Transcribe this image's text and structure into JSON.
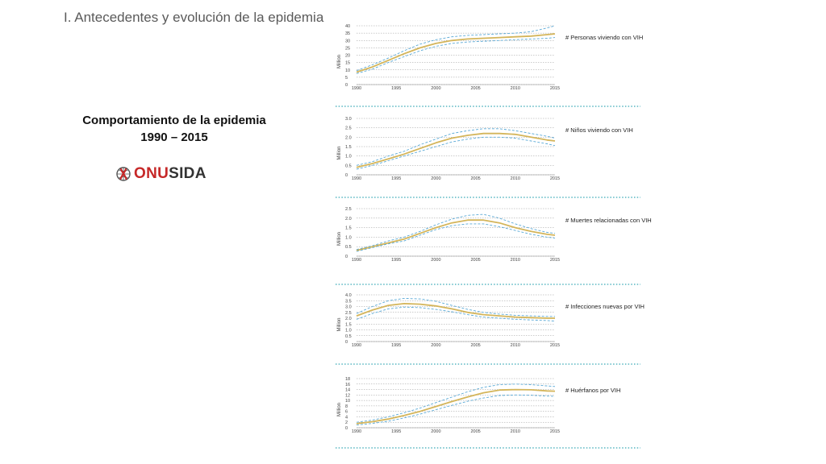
{
  "slide": {
    "title": "I. Antecedentes y evolución de la epidemia",
    "heading_line1": "Comportamiento de la epidemia",
    "heading_line2": "1990 – 2015",
    "logo_text_prefix": "ONU",
    "logo_text_suffix": "SIDA"
  },
  "colors": {
    "estimate": "#d4b55a",
    "bounds": "#5aa9d6",
    "grid": "#999999",
    "divider": "#34a7b5",
    "logo_red": "#c62828"
  },
  "chart_data": [
    {
      "type": "line",
      "label": "# Personas viviendo con VIH",
      "ylabel": "Million",
      "ylim": [
        0,
        40
      ],
      "yticks": [
        "0",
        "5",
        "10",
        "15",
        "20",
        "25",
        "30",
        "35",
        "40"
      ],
      "xticks": [
        "1990",
        "1995",
        "2000",
        "2005",
        "2010",
        "2015"
      ],
      "x": [
        1990,
        1992,
        1994,
        1996,
        1998,
        2000,
        2002,
        2004,
        2006,
        2008,
        2010,
        2012,
        2014,
        2015
      ],
      "series": [
        {
          "role": "estimate",
          "values": [
            8.5,
            12,
            16.5,
            21,
            25,
            28,
            30,
            31,
            31.5,
            32,
            32.5,
            33,
            34,
            34.5
          ]
        },
        {
          "role": "upper",
          "values": [
            9.5,
            13.5,
            18,
            23,
            27.5,
            30.5,
            32.5,
            33.5,
            34,
            34.5,
            35,
            36,
            38.5,
            40
          ]
        },
        {
          "role": "lower",
          "values": [
            7.5,
            10.5,
            15,
            19,
            23,
            26,
            28,
            29,
            29.5,
            30,
            30.5,
            31,
            31.5,
            32
          ]
        }
      ]
    },
    {
      "type": "line",
      "label": "# Niños viviendo con VIH",
      "ylabel": "Million",
      "ylim": [
        0,
        3.0
      ],
      "yticks": [
        "0",
        "0.5",
        "1.0",
        "1.5",
        "2.0",
        "2.5",
        "3.0"
      ],
      "xticks": [
        "1990",
        "1995",
        "2000",
        "2005",
        "2010",
        "2015"
      ],
      "x": [
        1990,
        1992,
        1994,
        1996,
        1998,
        2000,
        2002,
        2004,
        2006,
        2008,
        2010,
        2012,
        2014,
        2015
      ],
      "series": [
        {
          "role": "estimate",
          "values": [
            0.4,
            0.6,
            0.85,
            1.1,
            1.4,
            1.7,
            1.95,
            2.1,
            2.2,
            2.2,
            2.15,
            2.0,
            1.85,
            1.8
          ]
        },
        {
          "role": "upper",
          "values": [
            0.5,
            0.7,
            1.0,
            1.25,
            1.6,
            1.9,
            2.2,
            2.35,
            2.45,
            2.45,
            2.35,
            2.2,
            2.05,
            1.95
          ]
        },
        {
          "role": "lower",
          "values": [
            0.3,
            0.5,
            0.75,
            1.0,
            1.25,
            1.5,
            1.75,
            1.9,
            2.0,
            2.0,
            1.95,
            1.8,
            1.65,
            1.55
          ]
        }
      ]
    },
    {
      "type": "line",
      "label": "# Muertes relacionadas con VIH",
      "ylabel": "Million",
      "ylim": [
        0,
        2.5
      ],
      "yticks": [
        "0",
        "0.5",
        "1.0",
        "1.5",
        "2.0",
        "2.5"
      ],
      "xticks": [
        "1990",
        "1995",
        "2000",
        "2005",
        "2010",
        "2015"
      ],
      "x": [
        1990,
        1992,
        1994,
        1996,
        1998,
        2000,
        2002,
        2004,
        2006,
        2008,
        2010,
        2012,
        2014,
        2015
      ],
      "series": [
        {
          "role": "estimate",
          "values": [
            0.3,
            0.5,
            0.7,
            0.9,
            1.2,
            1.5,
            1.75,
            1.9,
            1.9,
            1.75,
            1.5,
            1.3,
            1.15,
            1.1
          ]
        },
        {
          "role": "upper",
          "values": [
            0.35,
            0.55,
            0.8,
            1.0,
            1.3,
            1.65,
            1.95,
            2.15,
            2.2,
            2.0,
            1.7,
            1.45,
            1.25,
            1.2
          ]
        },
        {
          "role": "lower",
          "values": [
            0.25,
            0.45,
            0.65,
            0.8,
            1.1,
            1.4,
            1.6,
            1.7,
            1.7,
            1.55,
            1.35,
            1.15,
            1.0,
            0.95
          ]
        }
      ]
    },
    {
      "type": "line",
      "label": "# Infecciones nuevas por VIH",
      "ylabel": "Million",
      "ylim": [
        0,
        4.0
      ],
      "yticks": [
        "0",
        "0.5",
        "1.0",
        "1.5",
        "2.0",
        "2.5",
        "3.0",
        "3.5",
        "4.0"
      ],
      "xticks": [
        "1990",
        "1995",
        "2000",
        "2005",
        "2010",
        "2015"
      ],
      "x": [
        1990,
        1992,
        1994,
        1996,
        1998,
        2000,
        2002,
        2004,
        2006,
        2008,
        2010,
        2012,
        2014,
        2015
      ],
      "series": [
        {
          "role": "estimate",
          "values": [
            2.2,
            2.7,
            3.1,
            3.25,
            3.2,
            3.05,
            2.8,
            2.5,
            2.3,
            2.2,
            2.1,
            2.05,
            2.0,
            2.0
          ]
        },
        {
          "role": "upper",
          "values": [
            2.4,
            3.0,
            3.5,
            3.7,
            3.65,
            3.45,
            3.1,
            2.75,
            2.5,
            2.35,
            2.25,
            2.2,
            2.15,
            2.15
          ]
        },
        {
          "role": "lower",
          "values": [
            1.9,
            2.4,
            2.8,
            2.95,
            2.9,
            2.75,
            2.55,
            2.3,
            2.1,
            2.0,
            1.9,
            1.85,
            1.8,
            1.75
          ]
        }
      ]
    },
    {
      "type": "line",
      "label": "# Huérfanos por VIH",
      "ylabel": "Million",
      "ylim": [
        0,
        18
      ],
      "yticks": [
        "0",
        "2",
        "4",
        "6",
        "8",
        "10",
        "12",
        "14",
        "16",
        "18"
      ],
      "xticks": [
        "1990",
        "1995",
        "2000",
        "2005",
        "2010",
        "2015"
      ],
      "x": [
        1990,
        1992,
        1994,
        1996,
        1998,
        2000,
        2002,
        2004,
        2006,
        2008,
        2010,
        2012,
        2014,
        2015
      ],
      "series": [
        {
          "role": "estimate",
          "values": [
            1.5,
            2.2,
            3.2,
            4.5,
            6.0,
            7.8,
            9.6,
            11.3,
            12.8,
            13.8,
            14.0,
            13.9,
            13.5,
            13.4
          ]
        },
        {
          "role": "upper",
          "values": [
            2.0,
            2.8,
            4.0,
            5.5,
            7.2,
            9.2,
            11.2,
            13.2,
            14.8,
            15.8,
            16.0,
            15.8,
            15.3,
            15.1
          ]
        },
        {
          "role": "lower",
          "values": [
            1.0,
            1.6,
            2.4,
            3.6,
            5.0,
            6.6,
            8.2,
            9.7,
            10.9,
            11.8,
            12.0,
            11.9,
            11.6,
            11.5
          ]
        }
      ]
    }
  ]
}
